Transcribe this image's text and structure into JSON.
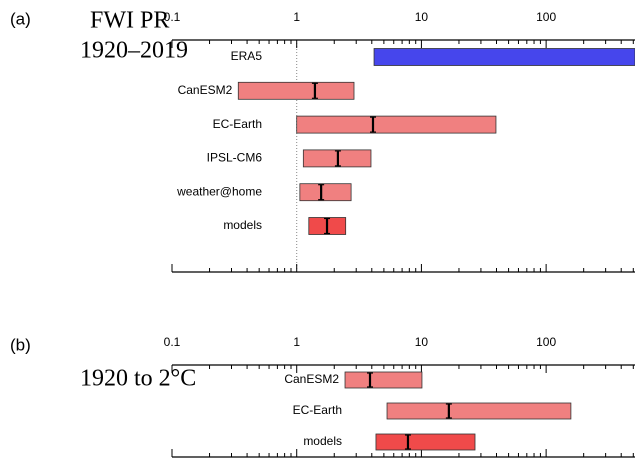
{
  "chart_data": [
    {
      "type": "range",
      "panel_label": "(a)",
      "title": "FWI PR",
      "subtitle": "1920–2019",
      "log_x": true,
      "xlim": [
        0.1,
        516
      ],
      "xticks": [
        0.1,
        1,
        10,
        100
      ],
      "xminorticks": [
        0.2,
        0.3,
        0.4,
        0.5,
        0.6,
        0.7,
        0.8,
        0.9,
        2,
        3,
        4,
        5,
        6,
        7,
        8,
        9,
        20,
        30,
        40,
        50,
        60,
        70,
        80,
        90,
        200,
        300,
        400,
        500
      ],
      "ref_line": 1,
      "rows": [
        {
          "name": "ERA5",
          "color": "#4646ec",
          "low": 4.17,
          "best": null,
          "high": 516
        },
        {
          "name": "CanESM2",
          "color": "#f08080",
          "low": 0.34,
          "best": 1.4,
          "high": 2.88
        },
        {
          "name": "EC-Earth",
          "color": "#f08080",
          "low": 1.0,
          "best": 4.09,
          "high": 39.6
        },
        {
          "name": "IPSL-CM6",
          "color": "#f08080",
          "low": 1.13,
          "best": 2.14,
          "high": 3.94
        },
        {
          "name": "weather@home",
          "color": "#f08080",
          "low": 1.06,
          "best": 1.57,
          "high": 2.73
        },
        {
          "name": "models",
          "color": "#f04a4a",
          "low": 1.25,
          "best": 1.75,
          "high": 2.47
        }
      ]
    },
    {
      "type": "range",
      "panel_label": "(b)",
      "title": "1920 to 2°C",
      "log_x": true,
      "xlim": [
        0.1,
        516
      ],
      "xticks": [
        0.1,
        1,
        10,
        100
      ],
      "xminorticks": [
        0.2,
        0.3,
        0.4,
        0.5,
        0.6,
        0.7,
        0.8,
        0.9,
        2,
        3,
        4,
        5,
        6,
        7,
        8,
        9,
        20,
        30,
        40,
        50,
        60,
        70,
        80,
        90,
        200,
        300,
        400,
        500
      ],
      "rows": [
        {
          "name": "CanESM2",
          "color": "#f08080",
          "low": 2.44,
          "best": 3.87,
          "high": 10.1
        },
        {
          "name": "EC-Earth",
          "color": "#f08080",
          "low": 5.3,
          "best": 16.6,
          "high": 158
        },
        {
          "name": "models",
          "color": "#f04a4a",
          "low": 4.32,
          "best": 7.8,
          "high": 26.9
        }
      ]
    }
  ]
}
